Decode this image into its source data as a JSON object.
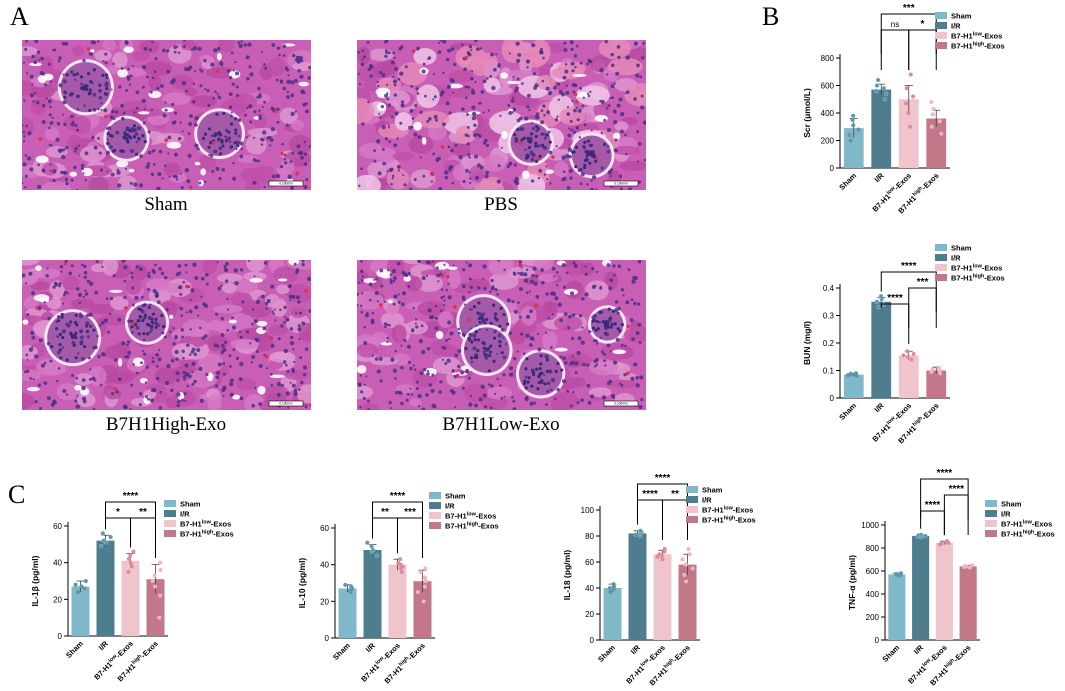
{
  "panels": {
    "A": "A",
    "B": "B",
    "C": "C"
  },
  "histology": [
    {
      "caption": "Sham",
      "scale_bar": "0.100mm",
      "pattern": "normal"
    },
    {
      "caption": "PBS",
      "scale_bar": "0.100mm",
      "pattern": "injured"
    },
    {
      "caption": "B7H1High-Exo",
      "scale_bar": "0.100mm",
      "pattern": "dense"
    },
    {
      "caption": "B7H1Low-Exo",
      "scale_bar": "0.100mm",
      "pattern": "glomeruli"
    }
  ],
  "legend": {
    "entries": [
      {
        "label": "Sham",
        "sup": "",
        "suffix": "",
        "color": "#7fb8c8"
      },
      {
        "label": "I/R",
        "sup": "",
        "suffix": "",
        "color": "#4e7d8e"
      },
      {
        "label": "B7-H1",
        "sup": "low",
        "suffix": "-Exos",
        "color": "#f0c4cb"
      },
      {
        "label": "B7-H1",
        "sup": "high",
        "suffix": "-Exos",
        "color": "#c27888"
      }
    ]
  },
  "chart_data": [
    {
      "id": "scr",
      "type": "bar",
      "categories": [
        "Sham",
        "I/R",
        "B7-H1|low|-Exos",
        "B7-H1|high|-Exos"
      ],
      "values": [
        290,
        570,
        500,
        360
      ],
      "errors": [
        70,
        40,
        100,
        60
      ],
      "points": [
        [
          200,
          240,
          280,
          310,
          350,
          380
        ],
        [
          500,
          540,
          560,
          580,
          600,
          640
        ],
        [
          300,
          400,
          470,
          520,
          580,
          680
        ],
        [
          250,
          300,
          340,
          390,
          430,
          480
        ]
      ],
      "ylabel": "Scr (μmol/L)",
      "ylim": [
        0,
        800
      ],
      "yticks": [
        0,
        200,
        400,
        600,
        800
      ],
      "comparisons": [
        {
          "from": 1,
          "to": 3,
          "label": "***",
          "level": 0
        },
        {
          "from": 1,
          "to": 2,
          "label": "ns",
          "level": 1
        },
        {
          "from": 2,
          "to": 3,
          "label": "*",
          "level": 1
        }
      ]
    },
    {
      "id": "bun",
      "type": "bar",
      "categories": [
        "Sham",
        "I/R",
        "B7-H1|low|-Exos",
        "B7-H1|high|-Exos"
      ],
      "values": [
        0.085,
        0.35,
        0.155,
        0.1
      ],
      "errors": [
        0.005,
        0.015,
        0.015,
        0.012
      ],
      "points": [
        [
          0.08,
          0.083,
          0.085,
          0.088,
          0.09
        ],
        [
          0.33,
          0.34,
          0.35,
          0.36,
          0.37
        ],
        [
          0.14,
          0.15,
          0.155,
          0.16,
          0.17
        ],
        [
          0.09,
          0.095,
          0.1,
          0.105,
          0.11
        ]
      ],
      "ylabel": "BUN (mg/l)",
      "ylim": [
        0,
        0.4
      ],
      "yticks": [
        0.0,
        0.1,
        0.2,
        0.3,
        0.4
      ],
      "comparisons": [
        {
          "from": 1,
          "to": 3,
          "label": "****",
          "level": 0
        },
        {
          "from": 2,
          "to": 3,
          "label": "***",
          "level": 1
        },
        {
          "from": 1,
          "to": 2,
          "label": "****",
          "level": 2
        }
      ]
    },
    {
      "id": "il1b",
      "type": "bar",
      "categories": [
        "Sham",
        "I/R",
        "B7-H1|low|-Exos",
        "B7-H1|high|-Exos"
      ],
      "values": [
        27,
        52,
        41,
        31
      ],
      "errors": [
        3,
        3,
        4,
        8
      ],
      "points": [
        [
          24,
          26,
          27,
          28,
          30
        ],
        [
          49,
          51,
          52,
          54,
          56
        ],
        [
          35,
          38,
          40,
          42,
          44,
          46
        ],
        [
          10,
          22,
          27,
          30,
          33,
          36,
          40
        ]
      ],
      "ylabel": "IL-1β (pg/ml)",
      "ylim": [
        0,
        60
      ],
      "yticks": [
        0,
        20,
        40,
        60
      ],
      "comparisons": [
        {
          "from": 1,
          "to": 3,
          "label": "****",
          "level": 0
        },
        {
          "from": 1,
          "to": 2,
          "label": "*",
          "level": 1
        },
        {
          "from": 2,
          "to": 3,
          "label": "**",
          "level": 1
        }
      ]
    },
    {
      "id": "il10",
      "type": "bar",
      "categories": [
        "Sham",
        "I/R",
        "B7-H1|low|-Exos",
        "B7-H1|high|-Exos"
      ],
      "values": [
        27,
        48,
        40,
        31
      ],
      "errors": [
        2,
        3,
        3,
        6
      ],
      "points": [
        [
          25,
          26,
          27,
          28,
          29
        ],
        [
          45,
          47,
          48,
          50,
          52
        ],
        [
          36,
          38,
          39,
          40,
          41,
          43
        ],
        [
          20,
          25,
          28,
          31,
          33,
          36,
          38
        ]
      ],
      "ylabel": "IL-10 (pg/ml)",
      "ylim": [
        0,
        60
      ],
      "yticks": [
        0,
        20,
        40,
        60
      ],
      "comparisons": [
        {
          "from": 1,
          "to": 3,
          "label": "****",
          "level": 0
        },
        {
          "from": 1,
          "to": 2,
          "label": "**",
          "level": 1
        },
        {
          "from": 2,
          "to": 3,
          "label": "***",
          "level": 1
        }
      ]
    },
    {
      "id": "il18",
      "type": "bar",
      "categories": [
        "Sham",
        "I/R",
        "B7-H1|low|-Exos",
        "B7-H1|high|-Exos"
      ],
      "values": [
        40,
        82,
        66,
        58
      ],
      "errors": [
        3,
        2,
        3,
        8
      ],
      "points": [
        [
          37,
          39,
          40,
          41,
          43
        ],
        [
          80,
          81,
          82,
          83,
          84
        ],
        [
          62,
          64,
          65,
          66,
          68,
          70
        ],
        [
          45,
          50,
          55,
          58,
          62,
          66,
          70
        ]
      ],
      "ylabel": "IL-18 (pg/ml)",
      "ylim": [
        0,
        100
      ],
      "yticks": [
        0,
        20,
        40,
        60,
        80,
        100
      ],
      "comparisons": [
        {
          "from": 1,
          "to": 3,
          "label": "****",
          "level": 0
        },
        {
          "from": 1,
          "to": 2,
          "label": "****",
          "level": 1
        },
        {
          "from": 2,
          "to": 3,
          "label": "**",
          "level": 1
        }
      ]
    },
    {
      "id": "tnfa",
      "type": "bar",
      "categories": [
        "Sham",
        "I/R",
        "B7-H1|low|-Exos",
        "B7-H1|high|-Exos"
      ],
      "values": [
        570,
        905,
        845,
        640
      ],
      "errors": [
        10,
        10,
        15,
        10
      ],
      "points": [
        [
          560,
          565,
          570,
          575,
          580
        ],
        [
          895,
          900,
          905,
          910,
          915
        ],
        [
          830,
          840,
          845,
          850,
          860
        ],
        [
          630,
          635,
          640,
          645,
          650
        ]
      ],
      "ylabel": "TNF-α (pg/ml)",
      "ylim": [
        0,
        1000
      ],
      "yticks": [
        0,
        200,
        400,
        600,
        800,
        1000
      ],
      "comparisons": [
        {
          "from": 1,
          "to": 3,
          "label": "****",
          "level": 0
        },
        {
          "from": 2,
          "to": 3,
          "label": "****",
          "level": 1
        },
        {
          "from": 1,
          "to": 2,
          "label": "****",
          "level": 2
        }
      ]
    }
  ]
}
